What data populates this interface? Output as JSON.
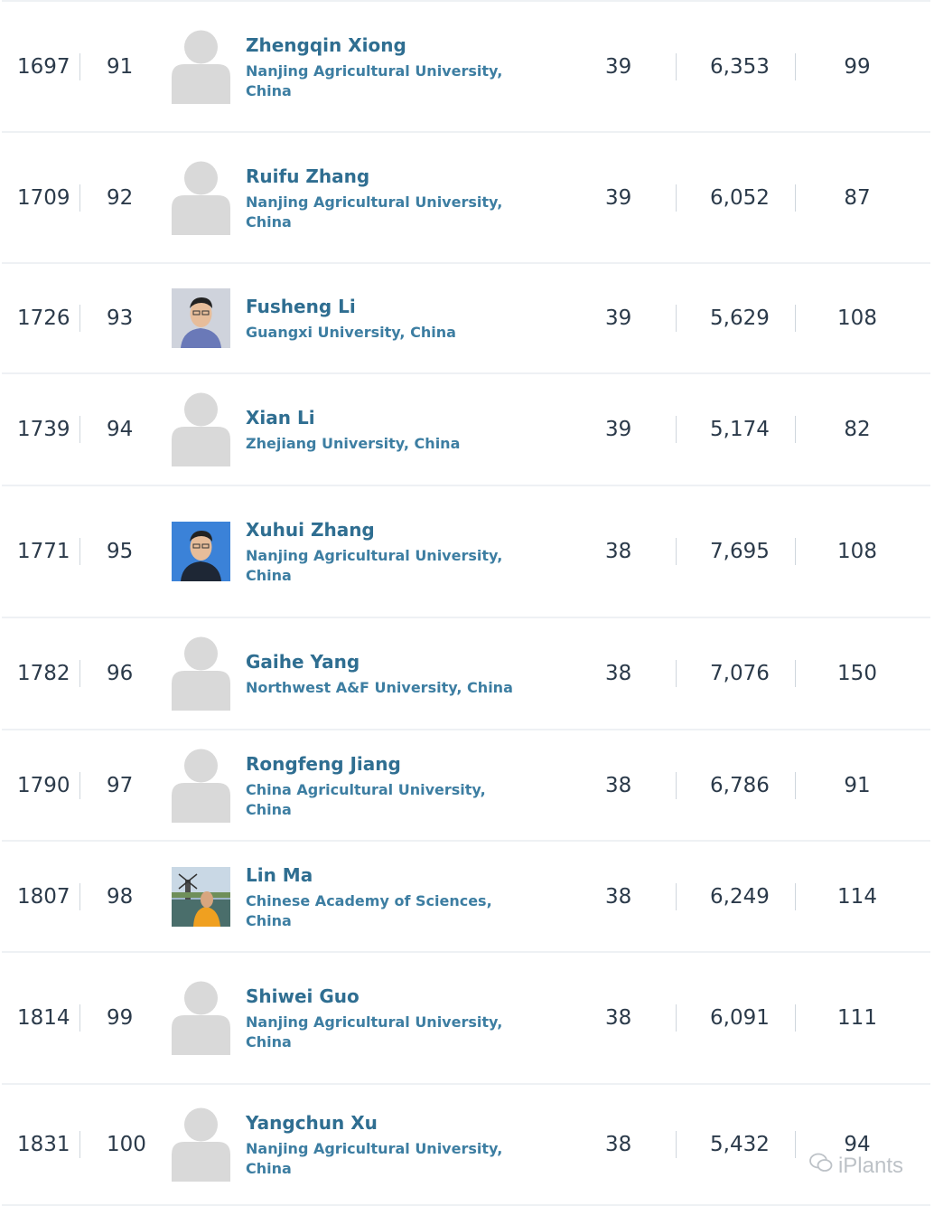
{
  "rows": [
    {
      "world_rank": "1697",
      "national_rank": "91",
      "name": "Zhengqin Xiong",
      "institution": "Nanjing Agricultural University, China",
      "h_index": "39",
      "citations": "6,353",
      "publications": "99",
      "avatar": "placeholder-icon"
    },
    {
      "world_rank": "1709",
      "national_rank": "92",
      "name": "Ruifu Zhang",
      "institution": "Nanjing Agricultural University, China",
      "h_index": "39",
      "citations": "6,052",
      "publications": "87",
      "avatar": "placeholder-icon"
    },
    {
      "world_rank": "1726",
      "national_rank": "93",
      "name": "Fusheng Li",
      "institution": "Guangxi University, China",
      "h_index": "39",
      "citations": "5,629",
      "publications": "108",
      "avatar": "photo-portrait"
    },
    {
      "world_rank": "1739",
      "national_rank": "94",
      "name": "Xian Li",
      "institution": "Zhejiang University, China",
      "h_index": "39",
      "citations": "5,174",
      "publications": "82",
      "avatar": "placeholder-icon"
    },
    {
      "world_rank": "1771",
      "national_rank": "95",
      "name": "Xuhui Zhang",
      "institution": "Nanjing Agricultural University, China",
      "h_index": "38",
      "citations": "7,695",
      "publications": "108",
      "avatar": "photo-portrait-blue"
    },
    {
      "world_rank": "1782",
      "national_rank": "96",
      "name": "Gaihe Yang",
      "institution": "Northwest A&F University, China",
      "h_index": "38",
      "citations": "7,076",
      "publications": "150",
      "avatar": "placeholder-icon"
    },
    {
      "world_rank": "1790",
      "national_rank": "97",
      "name": "Rongfeng Jiang",
      "institution": "China Agricultural University, China",
      "h_index": "38",
      "citations": "6,786",
      "publications": "91",
      "avatar": "placeholder-icon"
    },
    {
      "world_rank": "1807",
      "national_rank": "98",
      "name": "Lin Ma",
      "institution": "Chinese Academy of Sciences, China",
      "h_index": "38",
      "citations": "6,249",
      "publications": "114",
      "avatar": "photo-windmill"
    },
    {
      "world_rank": "1814",
      "national_rank": "99",
      "name": "Shiwei Guo",
      "institution": "Nanjing Agricultural University, China",
      "h_index": "38",
      "citations": "6,091",
      "publications": "111",
      "avatar": "placeholder-icon"
    },
    {
      "world_rank": "1831",
      "national_rank": "100",
      "name": "Yangchun Xu",
      "institution": "Nanjing Agricultural University, China",
      "h_index": "38",
      "citations": "5,432",
      "publications": "94",
      "avatar": "placeholder-icon"
    }
  ],
  "watermark": "iPlants",
  "colors": {
    "link": "#2f6e91",
    "institution": "#3d7ea2",
    "text": "#2b3a4a",
    "divider": "#eef1f4",
    "placeholder": "#d9d9d9"
  }
}
